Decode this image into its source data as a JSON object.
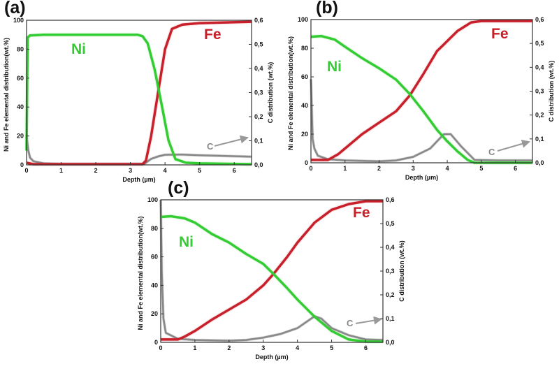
{
  "chart_data": [
    {
      "type": "line",
      "panel_label": "(a)",
      "xlabel": "Depth (µm)",
      "ylabel": "Ni and Fe elemental distribution(wt.%)",
      "y2label": "C distribution (wt.%)",
      "xlim": [
        0,
        6.5
      ],
      "ylim": [
        0,
        100
      ],
      "y2lim": [
        0,
        0.6
      ],
      "xticks": [
        "0",
        "1",
        "2",
        "3",
        "4",
        "5",
        "6"
      ],
      "yticks": [
        "0",
        "20",
        "40",
        "60",
        "80",
        "100"
      ],
      "y2ticks": [
        "0,0",
        "0,1",
        "0,2",
        "0,3",
        "0,4",
        "0,5",
        "0,6"
      ],
      "grid": false,
      "annotations": [
        "Ni",
        "Fe",
        "C"
      ],
      "series": [
        {
          "name": "Ni",
          "axis": "left",
          "color": "#33cc33",
          "x": [
            0,
            0.03,
            0.1,
            0.5,
            3.2,
            3.35,
            3.5,
            3.7,
            3.9,
            4.1,
            4.3,
            4.6,
            5,
            6.5
          ],
          "y": [
            10,
            88,
            89.5,
            90,
            90,
            89,
            84,
            66,
            42,
            17,
            4,
            1.5,
            1,
            0.5
          ]
        },
        {
          "name": "Fe",
          "axis": "left",
          "color": "#c8202a",
          "x": [
            0,
            0.2,
            3.35,
            3.45,
            3.6,
            3.8,
            4.0,
            4.2,
            4.5,
            5,
            6.5
          ],
          "y": [
            1.5,
            0.5,
            0.5,
            3,
            20,
            50,
            80,
            94,
            97,
            98,
            99
          ]
        },
        {
          "name": "C",
          "axis": "right",
          "color": "#888888",
          "x": [
            0,
            0.05,
            0.1,
            0.2,
            0.5,
            1,
            3.4,
            3.6,
            3.8,
            4.0,
            4.5,
            5,
            5.5,
            6,
            6.5
          ],
          "y": [
            0.12,
            0.06,
            0.03,
            0.015,
            0.006,
            0.004,
            0.004,
            0.025,
            0.035,
            0.042,
            0.043,
            0.04,
            0.038,
            0.036,
            0.034
          ]
        }
      ]
    },
    {
      "type": "line",
      "panel_label": "(b)",
      "xlabel": "Depth (µm)",
      "ylabel": "Ni and Fe elemental distribution(wt.%)",
      "y2label": "C distribution (wt.%)",
      "xlim": [
        0,
        6.5
      ],
      "ylim": [
        0,
        100
      ],
      "y2lim": [
        0,
        0.6
      ],
      "xticks": [
        "0",
        "1",
        "2",
        "3",
        "4",
        "5",
        "6"
      ],
      "yticks": [
        "0",
        "20",
        "40",
        "60",
        "80",
        "100"
      ],
      "y2ticks": [
        "0,0",
        "0,1",
        "0,2",
        "0,3",
        "0,4",
        "0,5",
        "0,6"
      ],
      "grid": false,
      "annotations": [
        "Ni",
        "Fe",
        "C"
      ],
      "series": [
        {
          "name": "Ni",
          "axis": "left",
          "color": "#33cc33",
          "x": [
            0,
            0.3,
            0.7,
            1,
            1.5,
            2,
            2.5,
            2.9,
            3.3,
            3.7,
            4,
            4.3,
            4.6,
            4.8,
            6.5
          ],
          "y": [
            88,
            88.5,
            86,
            81,
            73,
            66,
            58,
            48,
            36,
            23,
            15,
            8,
            2,
            0,
            0
          ]
        },
        {
          "name": "Fe",
          "axis": "left",
          "color": "#c8202a",
          "x": [
            0,
            0.5,
            0.8,
            1,
            1.5,
            2,
            2.5,
            2.9,
            3.3,
            3.7,
            4,
            4.3,
            4.7,
            5,
            6.5
          ],
          "y": [
            2,
            2,
            6,
            10,
            20,
            28,
            36,
            47,
            62,
            78,
            85,
            92,
            98,
            99,
            99
          ]
        },
        {
          "name": "C",
          "axis": "right",
          "color": "#888888",
          "x": [
            0,
            0.05,
            0.1,
            0.2,
            0.5,
            1,
            2,
            2.5,
            3,
            3.5,
            3.9,
            4.1,
            4.4,
            4.8,
            5.5,
            6.5
          ],
          "y": [
            0.35,
            0.1,
            0.06,
            0.03,
            0.015,
            0.01,
            0.006,
            0.01,
            0.025,
            0.06,
            0.12,
            0.12,
            0.07,
            0.012,
            0.01,
            0.01
          ]
        }
      ]
    },
    {
      "type": "line",
      "panel_label": "(c)",
      "xlabel": "Depth (µm)",
      "ylabel": "Ni and Fe elemental distribution(wt.%)",
      "y2label": "C distribution (wt.%)",
      "xlim": [
        0,
        6.5
      ],
      "ylim": [
        0,
        100
      ],
      "y2lim": [
        0,
        0.6
      ],
      "xticks": [
        "0",
        "1",
        "2",
        "3",
        "4",
        "5",
        "6"
      ],
      "yticks": [
        "0",
        "20",
        "40",
        "60",
        "80",
        "100"
      ],
      "y2ticks": [
        "0,0",
        "0,1",
        "0,2",
        "0,3",
        "0,4",
        "0,5",
        "0,6"
      ],
      "grid": false,
      "annotations": [
        "Ni",
        "Fe",
        "C"
      ],
      "series": [
        {
          "name": "Ni",
          "axis": "left",
          "color": "#33cc33",
          "x": [
            0,
            0.3,
            0.7,
            1,
            1.5,
            2,
            2.5,
            3,
            3.3,
            3.7,
            4,
            4.5,
            5,
            5.5,
            6,
            6.5
          ],
          "y": [
            88,
            88.5,
            87,
            84,
            76,
            70,
            62,
            55,
            48,
            38,
            30,
            18,
            8,
            2,
            0.5,
            0.5
          ]
        },
        {
          "name": "Fe",
          "axis": "left",
          "color": "#c8202a",
          "x": [
            0,
            0.5,
            0.7,
            1,
            1.5,
            2,
            2.5,
            3,
            3.3,
            3.7,
            4,
            4.5,
            5,
            5.5,
            6,
            6.5
          ],
          "y": [
            2,
            2,
            4,
            8,
            16,
            23,
            30,
            40,
            48,
            60,
            70,
            84,
            93,
            97,
            99,
            99
          ]
        },
        {
          "name": "C",
          "axis": "right",
          "color": "#888888",
          "x": [
            0,
            0.03,
            0.08,
            0.15,
            0.5,
            1,
            2,
            2.5,
            3,
            3.5,
            4,
            4.5,
            4.7,
            5,
            5.5,
            6,
            6.5
          ],
          "y": [
            0.6,
            0.3,
            0.1,
            0.04,
            0.015,
            0.01,
            0.007,
            0.01,
            0.02,
            0.035,
            0.06,
            0.11,
            0.1,
            0.06,
            0.03,
            0.012,
            0.01
          ]
        }
      ]
    }
  ]
}
